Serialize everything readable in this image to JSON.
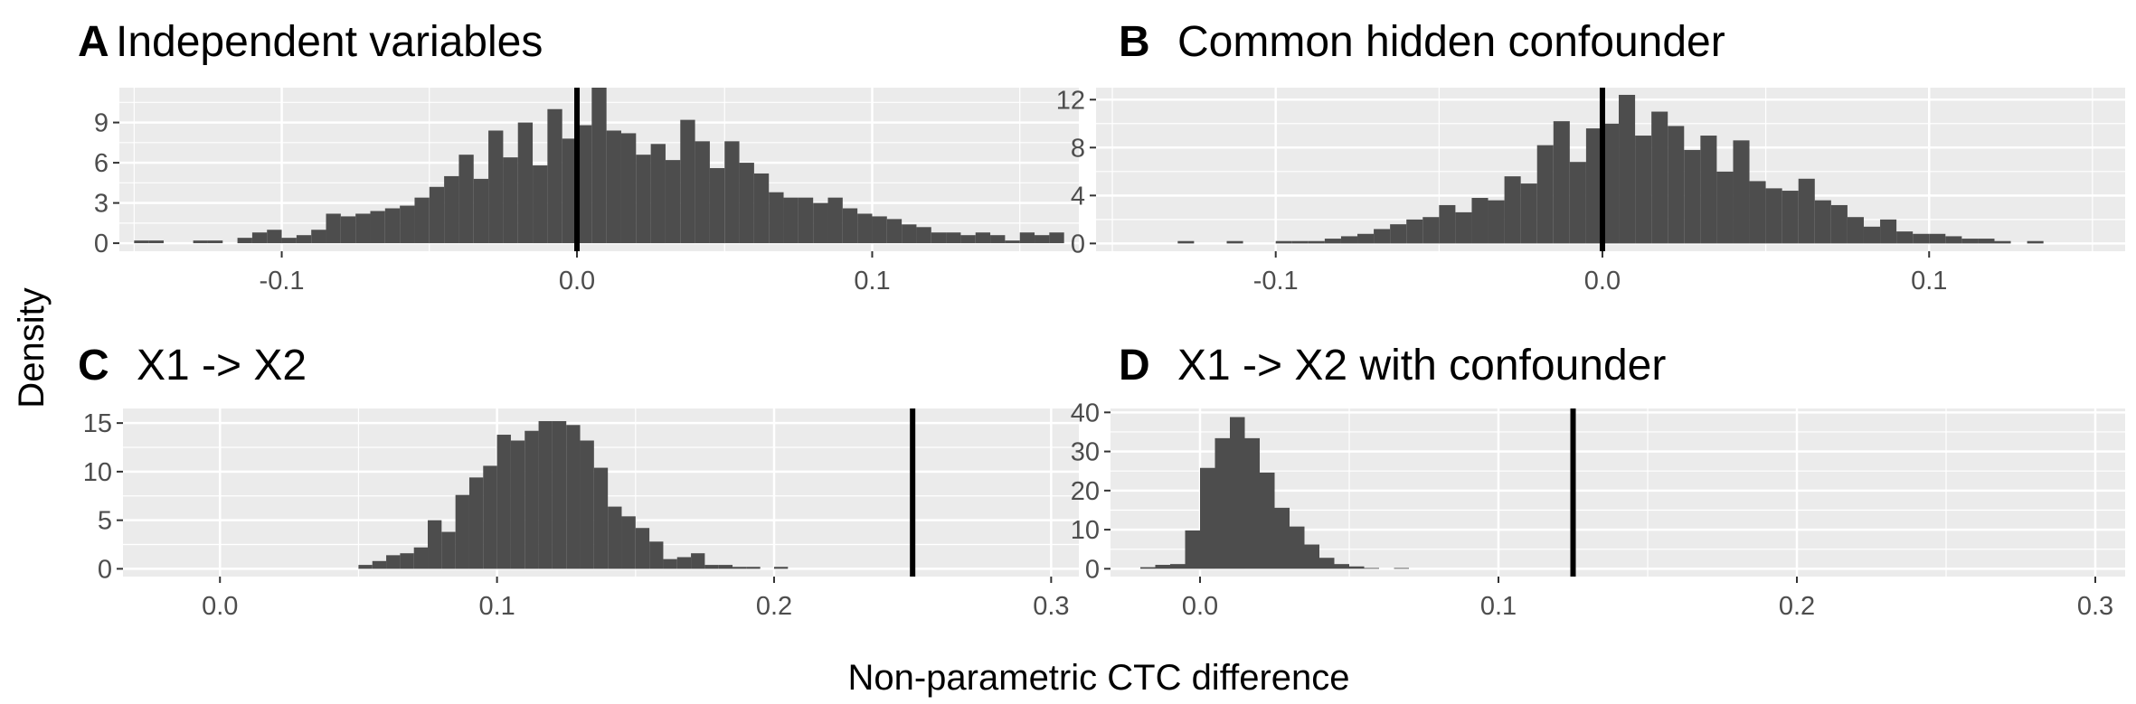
{
  "figure": {
    "ylabel": "Density",
    "xlabel": "Non-parametric CTC difference"
  },
  "colors": {
    "panel_background": "#ebebeb",
    "grid_major": "#ffffff",
    "bar_fill": "#4d4d4d",
    "reference_line": "#000000",
    "tick_text": "#4d4d4d"
  },
  "chart_data": [
    {
      "type": "bar",
      "panel": "A",
      "title": "Independent variables",
      "xlim": [
        -0.155,
        0.17
      ],
      "ylim": [
        -0.6,
        11.6
      ],
      "xticks": [
        -0.1,
        0.0,
        0.1
      ],
      "xtick_labels": [
        "-0.1",
        "0.0",
        "0.1"
      ],
      "yticks": [
        0,
        3,
        6,
        9
      ],
      "ytick_labels": [
        "0",
        "3",
        "6",
        "9"
      ],
      "bin_width": 0.005,
      "bin_start": -0.15,
      "densities": [
        0.2,
        0.2,
        0.0,
        0.0,
        0.2,
        0.2,
        0.0,
        0.4,
        0.8,
        1.0,
        0.4,
        0.6,
        1.0,
        2.2,
        2.0,
        2.2,
        2.4,
        2.6,
        2.8,
        3.4,
        4.2,
        5.0,
        6.6,
        4.8,
        8.4,
        6.4,
        9.0,
        5.8,
        10.0,
        7.8,
        8.8,
        11.6,
        8.4,
        8.2,
        6.6,
        7.4,
        6.2,
        9.2,
        7.6,
        5.6,
        7.6,
        6.0,
        5.2,
        3.8,
        3.4,
        3.4,
        3.0,
        3.4,
        2.6,
        2.2,
        2.0,
        1.8,
        1.4,
        1.2,
        0.8,
        0.8,
        0.6,
        0.8,
        0.6,
        0.2,
        0.8,
        0.6,
        0.8
      ],
      "vline": 0.0
    },
    {
      "type": "bar",
      "panel": "B",
      "title": "Common hidden confounder",
      "xlim": [
        -0.155,
        0.16
      ],
      "ylim": [
        -0.65,
        13.0
      ],
      "xticks": [
        -0.1,
        0.0,
        0.1
      ],
      "xtick_labels": [
        "-0.1",
        "0.0",
        "0.1"
      ],
      "yticks": [
        0,
        4,
        8,
        12
      ],
      "ytick_labels": [
        "0",
        "4",
        "8",
        "12"
      ],
      "bin_width": 0.005,
      "bin_start": -0.13,
      "densities": [
        0.2,
        0.0,
        0.0,
        0.2,
        0.0,
        0.0,
        0.2,
        0.2,
        0.2,
        0.4,
        0.6,
        0.8,
        1.2,
        1.6,
        2.0,
        2.2,
        3.2,
        2.6,
        3.8,
        3.6,
        5.6,
        5.0,
        8.2,
        10.2,
        6.8,
        9.6,
        10.0,
        12.4,
        9.0,
        11.0,
        9.8,
        7.8,
        9.0,
        6.0,
        8.6,
        5.2,
        4.6,
        4.4,
        5.4,
        3.6,
        3.2,
        2.2,
        1.4,
        2.0,
        1.0,
        0.8,
        0.8,
        0.6,
        0.4,
        0.4,
        0.2,
        0.0,
        0.2,
        0.0,
        0.0,
        0.0,
        0.0,
        0.0,
        0.0,
        0.0,
        0.0,
        0.0,
        0.0,
        0.0,
        0.0,
        0.0,
        0.0,
        0.0,
        0.0,
        0.0,
        0.0,
        0.2
      ],
      "vline": 0.0
    },
    {
      "type": "bar",
      "panel": "C",
      "title": "X1 -> X2",
      "xlim": [
        -0.035,
        0.31
      ],
      "ylim": [
        -0.8,
        16.5
      ],
      "xticks": [
        0.0,
        0.1,
        0.2,
        0.3
      ],
      "xtick_labels": [
        "0.0",
        "0.1",
        "0.2",
        "0.3"
      ],
      "yticks": [
        0,
        5,
        10,
        15
      ],
      "ytick_labels": [
        "0",
        "5",
        "10",
        "15"
      ],
      "bin_width": 0.005,
      "bin_start": 0.05,
      "densities": [
        0.4,
        0.8,
        1.4,
        1.6,
        2.2,
        5.0,
        3.8,
        7.6,
        9.4,
        10.6,
        13.8,
        13.2,
        14.2,
        15.2,
        15.2,
        14.8,
        13.2,
        10.4,
        6.4,
        5.4,
        4.2,
        2.8,
        1.0,
        1.2,
        1.6,
        0.4,
        0.4,
        0.2,
        0.2,
        0.0,
        0.2
      ],
      "vline": 0.25
    },
    {
      "type": "bar",
      "panel": "D",
      "title": "X1 -> X2 with confounder",
      "xlim": [
        -0.03,
        0.31
      ],
      "ylim": [
        -2.0,
        41.0
      ],
      "xticks": [
        0.0,
        0.1,
        0.2,
        0.3
      ],
      "xtick_labels": [
        "0.0",
        "0.1",
        "0.2",
        "0.3"
      ],
      "yticks": [
        0,
        10,
        20,
        30,
        40
      ],
      "ytick_labels": [
        "0",
        "10",
        "20",
        "30",
        "40"
      ],
      "bin_width": 0.005,
      "bin_start": -0.02,
      "densities": [
        0.4,
        1.0,
        1.2,
        9.8,
        25.8,
        33.4,
        38.8,
        33.4,
        24.6,
        15.6,
        10.8,
        6.2,
        2.8,
        1.2,
        0.6,
        0.2,
        0.0,
        0.2
      ],
      "vline": 0.125
    }
  ]
}
